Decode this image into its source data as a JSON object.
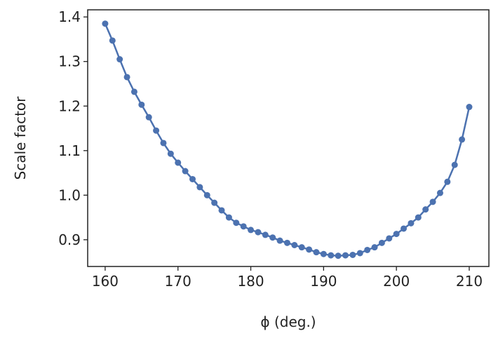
{
  "chart_data": {
    "type": "line",
    "x_label": "ϕ (deg.)",
    "y_label": "Scale factor",
    "color": "#4c72b0",
    "markers": true,
    "grid": false,
    "x": [
      160,
      161,
      162,
      163,
      164,
      165,
      166,
      167,
      168,
      169,
      170,
      171,
      172,
      173,
      174,
      175,
      176,
      177,
      178,
      179,
      180,
      181,
      182,
      183,
      184,
      185,
      186,
      187,
      188,
      189,
      190,
      191,
      192,
      193,
      194,
      195,
      196,
      197,
      198,
      199,
      200,
      201,
      202,
      203,
      204,
      205,
      206,
      207,
      208,
      209,
      210
    ],
    "series": [
      {
        "values": [
          1.385,
          1.347,
          1.305,
          1.265,
          1.232,
          1.203,
          1.175,
          1.145,
          1.117,
          1.093,
          1.073,
          1.054,
          1.036,
          1.018,
          1.0,
          0.983,
          0.966,
          0.95,
          0.938,
          0.93,
          0.922,
          0.917,
          0.911,
          0.905,
          0.898,
          0.893,
          0.888,
          0.883,
          0.878,
          0.872,
          0.868,
          0.865,
          0.864,
          0.865,
          0.866,
          0.87,
          0.877,
          0.883,
          0.893,
          0.903,
          0.913,
          0.925,
          0.937,
          0.95,
          0.968,
          0.985,
          1.005,
          1.03,
          1.068,
          1.125,
          1.198
        ]
      }
    ],
    "xlim": [
      157.6,
      212.7
    ],
    "ylim": [
      0.84,
      1.416
    ],
    "xticks": [
      160,
      170,
      180,
      190,
      200,
      210
    ],
    "yticks": [
      0.9,
      {
        "value": 1,
        "label": "1.0"
      },
      1.1,
      1.2,
      1.3,
      1.4
    ]
  }
}
